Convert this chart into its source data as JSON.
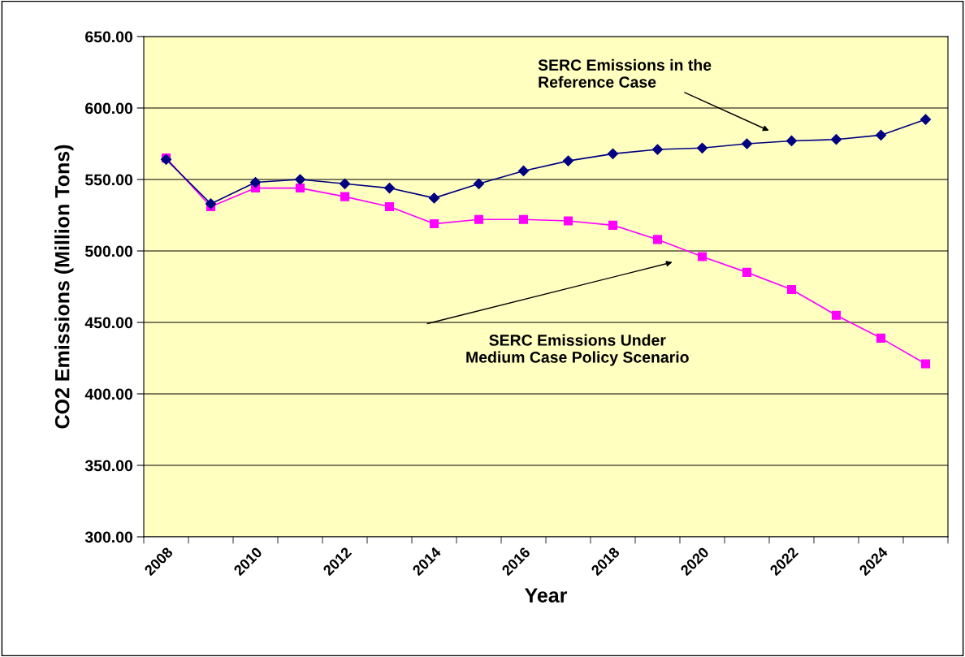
{
  "chart_data": {
    "type": "line",
    "xlabel": "Year",
    "ylabel": "CO2 Emissions (Million Tons)",
    "categories": [
      "2008",
      null,
      "2010",
      null,
      "2012",
      null,
      "2014",
      null,
      "2016",
      null,
      "2018",
      null,
      "2020",
      null,
      "2022",
      null,
      "2024",
      null
    ],
    "series": [
      {
        "color": "#000080",
        "marker": "diamond",
        "values": [
          564,
          533,
          548,
          550,
          547,
          544,
          537,
          547,
          556,
          563,
          568,
          571,
          572,
          575,
          577,
          578,
          581,
          592
        ]
      },
      {
        "color": "#ff00ff",
        "marker": "square",
        "values": [
          565,
          531,
          544,
          544,
          538,
          531,
          519,
          522,
          522,
          521,
          518,
          508,
          496,
          485,
          473,
          455,
          439,
          421
        ]
      }
    ],
    "ylim": [
      300,
      650
    ],
    "yticks": [
      {
        "value": 300,
        "label": "300.00"
      },
      {
        "value": 350,
        "label": "350.00"
      },
      {
        "value": 400,
        "label": "400.00"
      },
      {
        "value": 450,
        "label": "450.00"
      },
      {
        "value": 500,
        "label": "500.00"
      },
      {
        "value": 550,
        "label": "550.00"
      },
      {
        "value": 600,
        "label": "600.00"
      },
      {
        "value": 650,
        "label": "650.00"
      }
    ],
    "grid": "y",
    "legend": false,
    "line_style": "solid",
    "annotations": [
      "SERC Emissions in the\nReference Case",
      "SERC Emissions Under\nMedium Case Policy Scenario"
    ]
  }
}
